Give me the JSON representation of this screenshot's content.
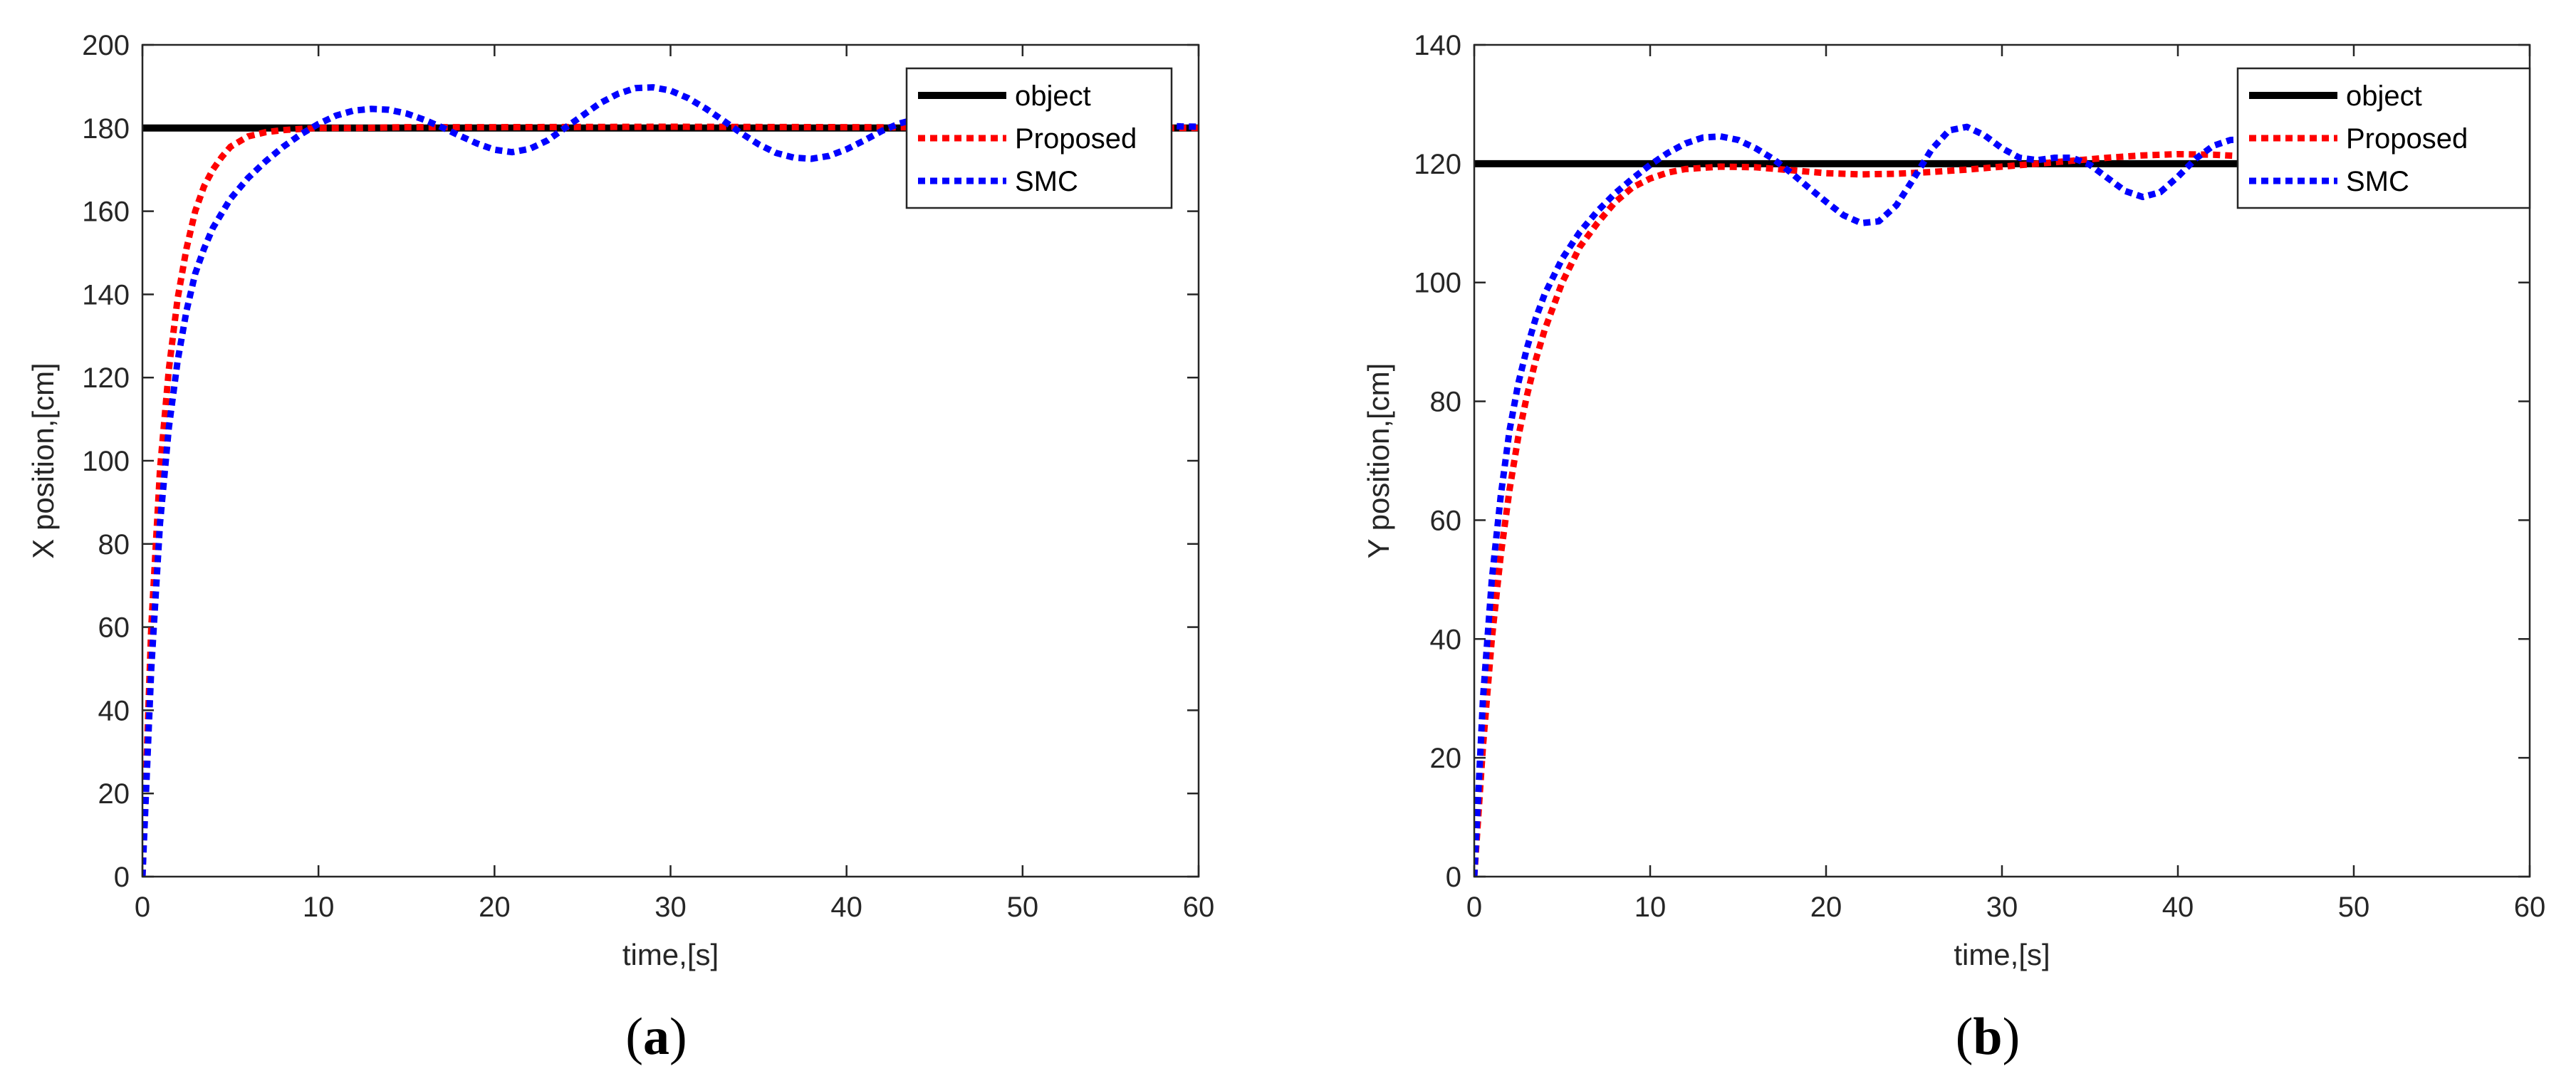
{
  "chart_data": [
    {
      "type": "line",
      "caption_open": "(",
      "caption_letter": "a",
      "caption_close": ")",
      "xlabel": "time,[s]",
      "ylabel": "X position,[cm]",
      "xlim": [
        0,
        60
      ],
      "ylim": [
        0,
        200
      ],
      "xticks": [
        0,
        10,
        20,
        30,
        40,
        50,
        60
      ],
      "yticks": [
        0,
        20,
        40,
        60,
        80,
        100,
        120,
        140,
        160,
        180,
        200
      ],
      "legend_position": "top-right",
      "series": [
        {
          "name": "object",
          "color": "#000000",
          "style": "solid",
          "x": [
            0,
            60
          ],
          "y": [
            180,
            180
          ]
        },
        {
          "name": "Proposed",
          "color": "#ff0000",
          "style": "dotted",
          "x": [
            0,
            0.5,
            1,
            1.5,
            2,
            2.5,
            3,
            3.5,
            4,
            4.5,
            5,
            6,
            7,
            8,
            9,
            10,
            12,
            15,
            20,
            30,
            40,
            50,
            60
          ],
          "y": [
            0,
            60,
            98,
            122,
            139,
            151,
            160,
            166,
            170,
            173,
            175.5,
            178,
            179,
            179.5,
            179.8,
            180,
            180,
            180.2,
            180.2,
            180.3,
            180.2,
            180.1,
            180
          ]
        },
        {
          "name": "SMC",
          "color": "#0000ff",
          "style": "dotted",
          "x": [
            0,
            0.5,
            1,
            1.5,
            2,
            2.5,
            3,
            3.5,
            4,
            5,
            6,
            7,
            8,
            9,
            10,
            11,
            12,
            13,
            14,
            15,
            16,
            17,
            18,
            19,
            20,
            21,
            22,
            23,
            24,
            25,
            26,
            27,
            28,
            29,
            30,
            31,
            32,
            33,
            34,
            35,
            36,
            37,
            38,
            39,
            40,
            41,
            42,
            43,
            44,
            45,
            46,
            47,
            48,
            49,
            50,
            51,
            52,
            53,
            54,
            55,
            56,
            57,
            58,
            59,
            60
          ],
          "y": [
            0,
            50,
            85,
            108,
            124,
            136,
            145,
            151,
            156,
            163,
            168,
            172,
            175.5,
            178.5,
            181,
            183,
            184.2,
            184.6,
            184.4,
            183.5,
            182,
            180.2,
            178.2,
            176.3,
            174.8,
            174.2,
            175,
            177,
            180,
            183,
            186,
            188.2,
            189.6,
            189.8,
            189,
            187.2,
            184.7,
            181.8,
            178.8,
            176.1,
            174,
            172.9,
            172.6,
            173.3,
            174.9,
            177,
            179.3,
            181.1,
            182.2,
            182.6,
            182.3,
            181.6,
            180.8,
            180.2,
            180,
            180.1,
            180.4,
            180.8,
            181.1,
            181.3,
            181.2,
            180.9,
            180.6,
            180.4,
            180.3
          ]
        }
      ]
    },
    {
      "type": "line",
      "caption_open": "(",
      "caption_letter": "b",
      "caption_close": ")",
      "xlabel": "time,[s]",
      "ylabel": "Y position,[cm]",
      "xlim": [
        0,
        60
      ],
      "ylim": [
        0,
        140
      ],
      "xticks": [
        0,
        10,
        20,
        30,
        40,
        50,
        60
      ],
      "yticks": [
        0,
        20,
        40,
        60,
        80,
        100,
        120,
        140
      ],
      "legend_position": "top-right",
      "series": [
        {
          "name": "object",
          "color": "#000000",
          "style": "solid",
          "x": [
            0,
            60
          ],
          "y": [
            120,
            120
          ]
        },
        {
          "name": "Proposed",
          "color": "#ff0000",
          "style": "dotted",
          "x": [
            0,
            0.5,
            1,
            1.5,
            2,
            2.5,
            3,
            3.5,
            4,
            5,
            6,
            7,
            8,
            9,
            10,
            11,
            12,
            14,
            16,
            18,
            20,
            22,
            24,
            26,
            28,
            30,
            32,
            34,
            36,
            38,
            40,
            42,
            44,
            46,
            48,
            50,
            52,
            54,
            56,
            58,
            59,
            60
          ],
          "y": [
            0,
            22,
            40,
            54,
            65,
            74,
            81,
            87,
            92,
            100,
            106,
            110,
            113.5,
            116,
            117.5,
            118.5,
            119.1,
            119.5,
            119.4,
            118.9,
            118.4,
            118.2,
            118.3,
            118.6,
            119,
            119.5,
            120,
            120.5,
            121,
            121.4,
            121.6,
            121.5,
            121.2,
            120.9,
            120.6,
            120.3,
            120.1,
            120,
            120,
            119.8,
            119,
            120.5
          ]
        },
        {
          "name": "SMC",
          "color": "#0000ff",
          "style": "dotted",
          "x": [
            0,
            0.5,
            1,
            1.5,
            2,
            2.5,
            3,
            3.5,
            4,
            5,
            6,
            7,
            8,
            9,
            10,
            11,
            12,
            13,
            14,
            15,
            16,
            17,
            18,
            19,
            20,
            21,
            22,
            23,
            24,
            25,
            26,
            27,
            28,
            29,
            30,
            31,
            32,
            33,
            34,
            35,
            36,
            37,
            38,
            39,
            40,
            41,
            42,
            43,
            44,
            45,
            46,
            48,
            50,
            52,
            54,
            56,
            58,
            59,
            60
          ],
          "y": [
            0,
            30,
            50,
            64,
            75,
            83,
            89,
            94,
            98,
            104,
            108.5,
            112,
            115,
            117.5,
            119.8,
            121.8,
            123.4,
            124.4,
            124.6,
            124,
            122.6,
            120.8,
            118.5,
            116,
            113.6,
            111.3,
            110,
            110.3,
            113,
            117.6,
            122.4,
            125.6,
            126.2,
            124.8,
            122.6,
            121,
            120.6,
            121,
            121,
            119.8,
            117.6,
            115.4,
            114.4,
            115.2,
            117.8,
            120.8,
            123,
            124,
            124.1,
            123.8,
            123.5,
            123.4,
            123.4,
            123.5,
            123.6,
            123.6,
            123.5,
            123.2,
            122.8
          ]
        }
      ]
    }
  ]
}
